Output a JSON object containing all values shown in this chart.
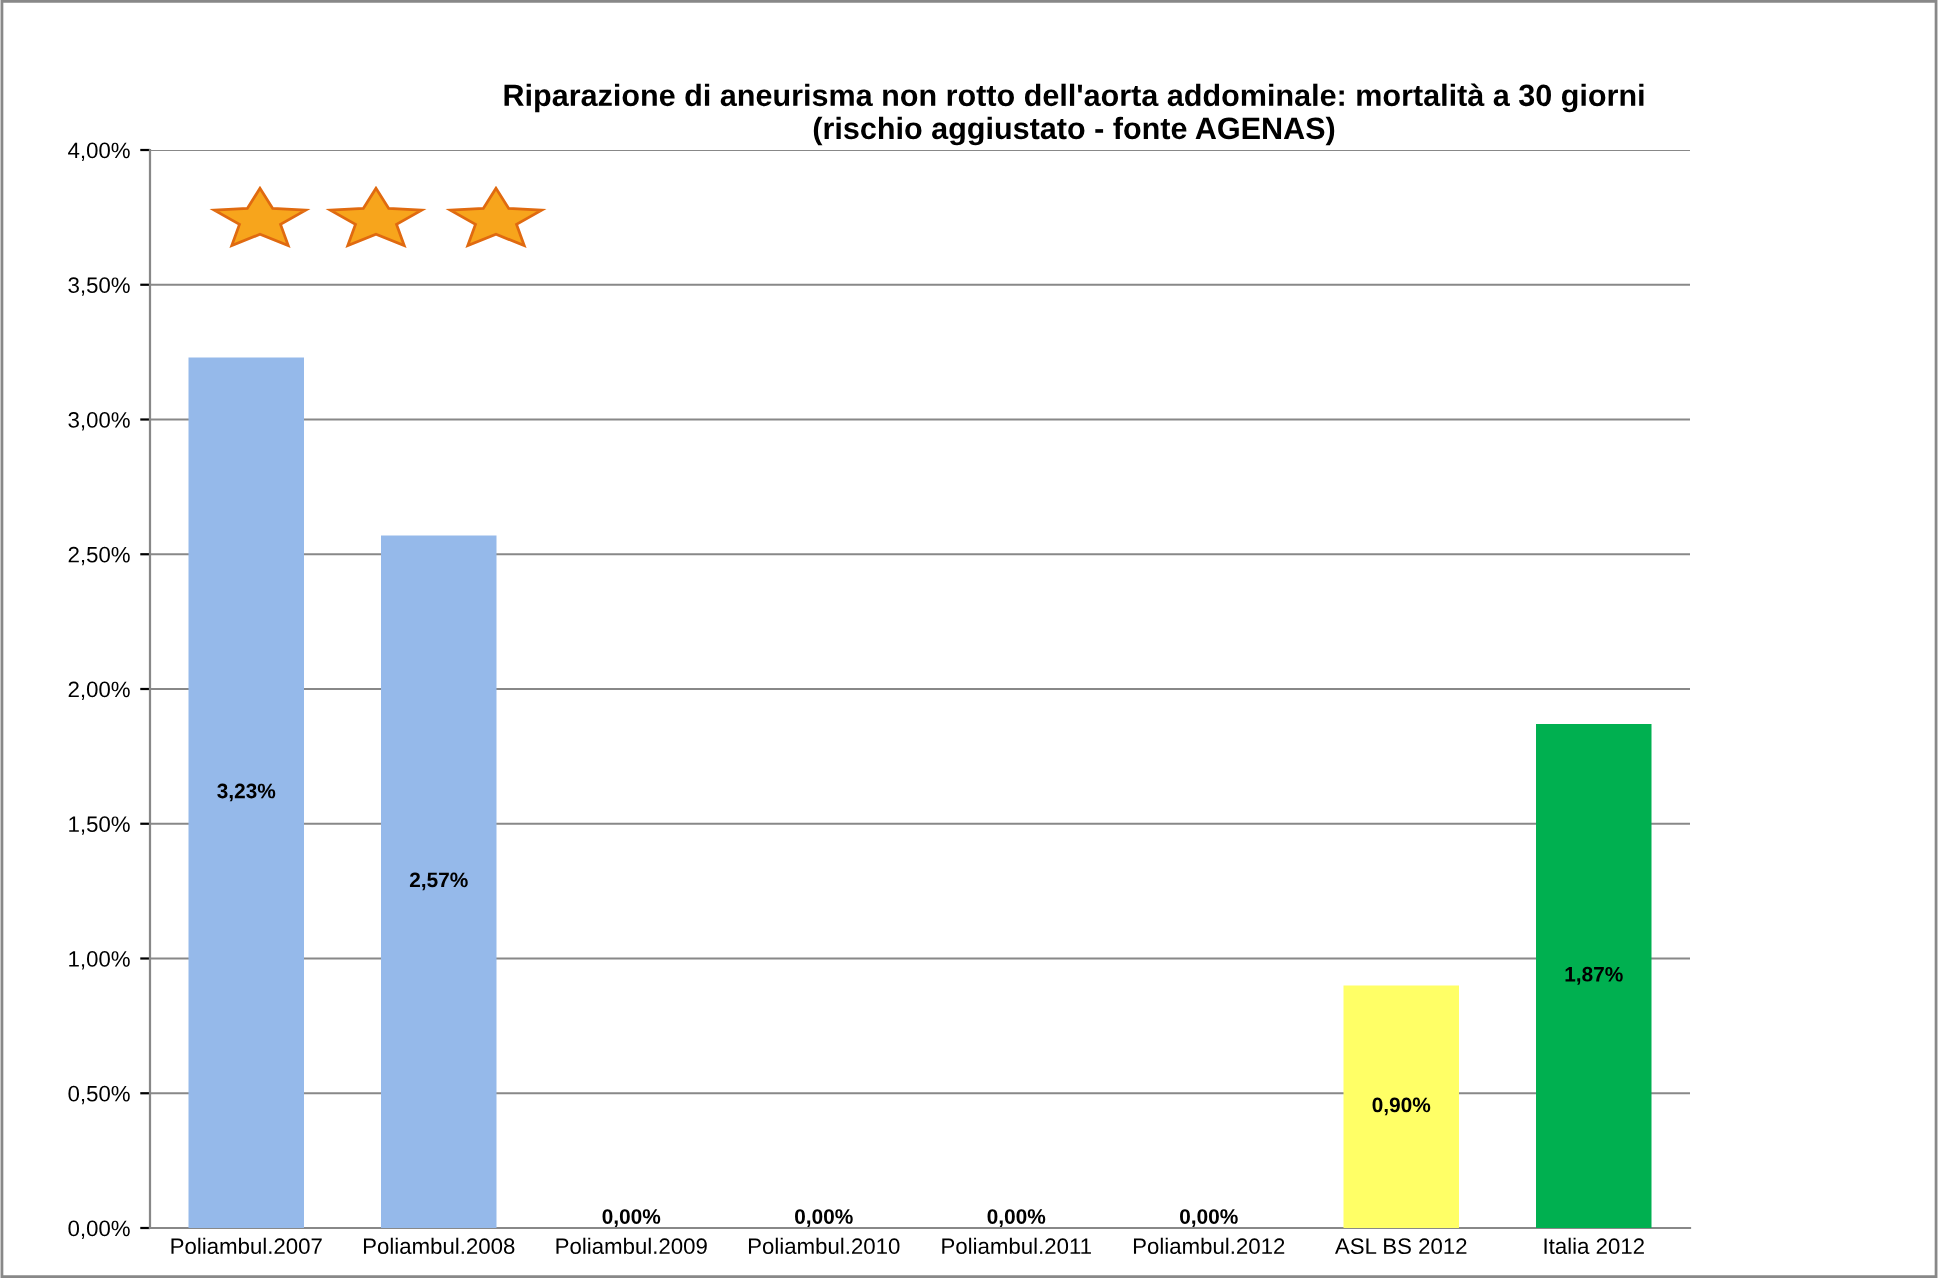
{
  "chart_data": {
    "type": "bar",
    "title": "Riparazione di aneurisma non rotto dell'aorta addominale: mortalità a 30 giorni\n(rischio aggiustato - fonte AGENAS)",
    "categories": [
      "Poliambul.2007",
      "Poliambul.2008",
      "Poliambul.2009",
      "Poliambul.2010",
      "Poliambul.2011",
      "Poliambul.2012",
      "ASL BS 2012",
      "Italia 2012"
    ],
    "values": [
      3.23,
      2.57,
      0,
      0,
      0,
      0,
      0.9,
      1.87
    ],
    "colors": [
      "#95b9ea",
      "#95b9ea",
      "#95b9ea",
      "#95b9ea",
      "#95b9ea",
      "#95b9ea",
      "#ffff66",
      "#00b050"
    ],
    "value_labels": [
      "3,23%",
      "2,57%",
      "0,00%",
      "0,00%",
      "0,00%",
      "0,00%",
      "0,90%",
      "1,87%"
    ],
    "ylim": [
      0,
      4
    ],
    "yticks": [
      {
        "value": 0,
        "label": "0,00%"
      },
      {
        "value": 0.5,
        "label": "0,50%"
      },
      {
        "value": 1,
        "label": "1,00%"
      },
      {
        "value": 1.5,
        "label": "1,50%"
      },
      {
        "value": 2,
        "label": "2,00%"
      },
      {
        "value": 2.5,
        "label": "2,50%"
      },
      {
        "value": 3,
        "label": "3,00%"
      },
      {
        "value": 3.5,
        "label": "3,50%"
      },
      {
        "value": 4,
        "label": "4,00%"
      }
    ],
    "grid": "y"
  }
}
